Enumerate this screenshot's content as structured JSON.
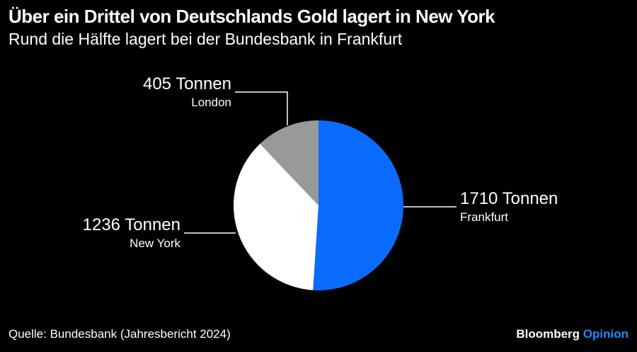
{
  "title": "Über ein Drittel von Deutschlands Gold lagert in New York",
  "subtitle": "Rund die Hälfte lagert bei der Bundesbank in Frankfurt",
  "source": "Quelle: Bundesbank (Jahresbericht 2024)",
  "logo": {
    "brand": "Bloomberg",
    "section": "Opinion"
  },
  "chart_data": {
    "type": "pie",
    "unit": "Tonnen",
    "start": "12 o'clock, clockwise",
    "slices": [
      {
        "name": "Frankfurt",
        "value": 1710,
        "label": "1710 Tonnen",
        "color": "#0a6cff"
      },
      {
        "name": "New York",
        "value": 1236,
        "label": "1236 Tonnen",
        "color": "#ffffff"
      },
      {
        "name": "London",
        "value": 405,
        "label": "405 Tonnen",
        "color": "#999999"
      }
    ]
  }
}
